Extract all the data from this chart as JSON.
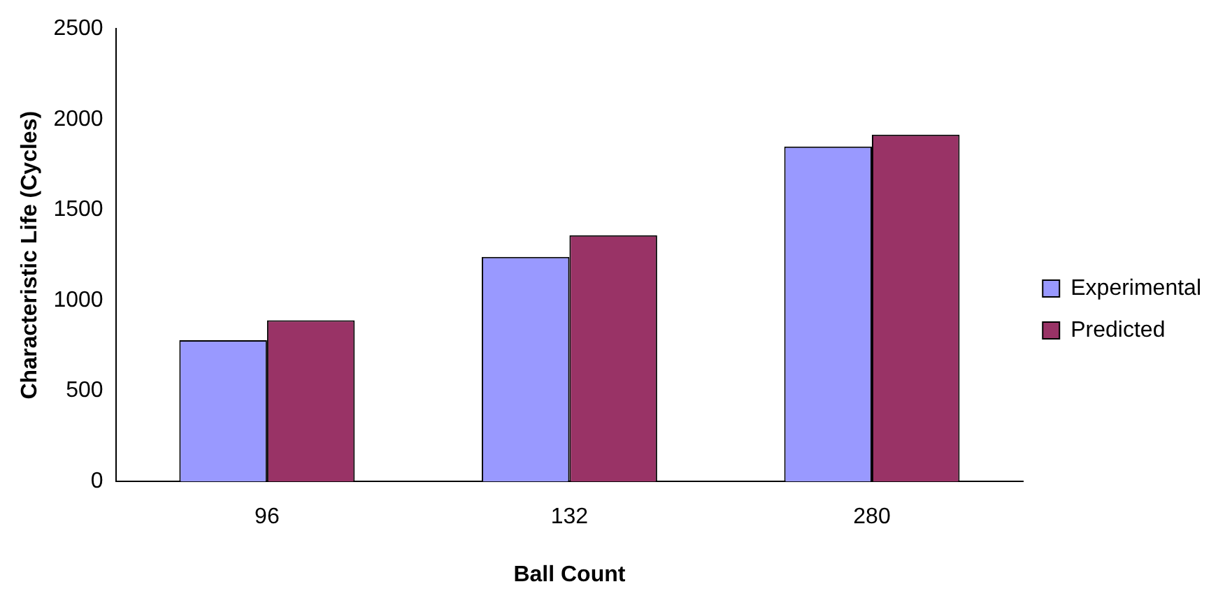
{
  "chart_data": {
    "type": "bar",
    "xlabel": "Ball Count",
    "ylabel": "Characteristic Life (Cycles)",
    "categories": [
      "96",
      "132",
      "280"
    ],
    "series": [
      {
        "name": "Experimental",
        "color": "#9999ff",
        "values": [
          780,
          1240,
          1850
        ]
      },
      {
        "name": "Predicted",
        "color": "#993366",
        "values": [
          890,
          1360,
          1915
        ]
      }
    ],
    "ylim": [
      0,
      2500
    ],
    "yticks": [
      0,
      500,
      1000,
      1500,
      2000,
      2500
    ],
    "grid": false,
    "legend": "right"
  }
}
